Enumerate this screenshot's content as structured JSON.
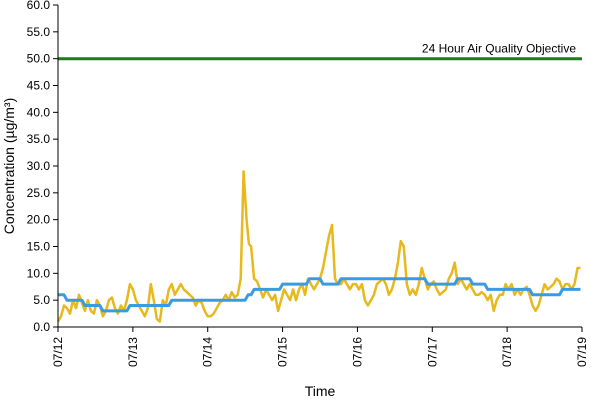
{
  "chart_data": {
    "type": "line",
    "title": "",
    "xlabel": "Time",
    "ylabel": "Concentration (µg/m³)",
    "ylim": [
      0,
      60
    ],
    "y_ticks": [
      "0.0",
      "5.0",
      "10.0",
      "15.0",
      "20.0",
      "25.0",
      "30.0",
      "35.0",
      "40.0",
      "45.0",
      "50.0",
      "55.0",
      "60.0"
    ],
    "x_ticks": [
      "07/12",
      "07/13",
      "07/14",
      "07/15",
      "07/16",
      "07/17",
      "07/18",
      "07/19"
    ],
    "xlim_days": [
      0,
      7
    ],
    "grid": false,
    "legend": "none",
    "annotation": {
      "text": "24 Hour Air Quality Objective",
      "y": 50
    },
    "series": [
      {
        "color": "#e8b81c",
        "points": [
          [
            0.0,
            1.0
          ],
          [
            0.04,
            2.0
          ],
          [
            0.08,
            4.0
          ],
          [
            0.12,
            3.5
          ],
          [
            0.16,
            2.5
          ],
          [
            0.2,
            5.0
          ],
          [
            0.24,
            3.5
          ],
          [
            0.28,
            6.0
          ],
          [
            0.32,
            4.5
          ],
          [
            0.36,
            3.0
          ],
          [
            0.4,
            5.0
          ],
          [
            0.44,
            3.0
          ],
          [
            0.48,
            2.5
          ],
          [
            0.52,
            5.0
          ],
          [
            0.56,
            4.0
          ],
          [
            0.6,
            2.0
          ],
          [
            0.64,
            3.0
          ],
          [
            0.68,
            5.0
          ],
          [
            0.72,
            5.5
          ],
          [
            0.76,
            3.5
          ],
          [
            0.8,
            2.5
          ],
          [
            0.84,
            4.0
          ],
          [
            0.88,
            3.0
          ],
          [
            0.92,
            5.0
          ],
          [
            0.96,
            8.0
          ],
          [
            1.0,
            7.0
          ],
          [
            1.04,
            5.0
          ],
          [
            1.08,
            4.0
          ],
          [
            1.12,
            3.0
          ],
          [
            1.16,
            2.0
          ],
          [
            1.2,
            3.5
          ],
          [
            1.24,
            8.0
          ],
          [
            1.28,
            5.0
          ],
          [
            1.32,
            1.5
          ],
          [
            1.36,
            1.0
          ],
          [
            1.4,
            5.0
          ],
          [
            1.44,
            4.0
          ],
          [
            1.48,
            7.0
          ],
          [
            1.52,
            8.0
          ],
          [
            1.56,
            6.0
          ],
          [
            1.6,
            7.0
          ],
          [
            1.64,
            8.0
          ],
          [
            1.68,
            7.0
          ],
          [
            1.72,
            6.5
          ],
          [
            1.76,
            6.0
          ],
          [
            1.8,
            5.5
          ],
          [
            1.84,
            4.0
          ],
          [
            1.88,
            5.0
          ],
          [
            1.92,
            4.5
          ],
          [
            1.96,
            3.0
          ],
          [
            2.0,
            2.0
          ],
          [
            2.04,
            2.0
          ],
          [
            2.08,
            2.5
          ],
          [
            2.12,
            3.5
          ],
          [
            2.16,
            4.5
          ],
          [
            2.2,
            5.0
          ],
          [
            2.24,
            6.0
          ],
          [
            2.28,
            5.0
          ],
          [
            2.32,
            6.5
          ],
          [
            2.36,
            5.5
          ],
          [
            2.4,
            6.0
          ],
          [
            2.44,
            9.0
          ],
          [
            2.48,
            29.0
          ],
          [
            2.52,
            20.0
          ],
          [
            2.55,
            15.5
          ],
          [
            2.58,
            15.0
          ],
          [
            2.62,
            9.0
          ],
          [
            2.66,
            8.5
          ],
          [
            2.7,
            7.0
          ],
          [
            2.74,
            5.5
          ],
          [
            2.78,
            7.0
          ],
          [
            2.82,
            6.0
          ],
          [
            2.86,
            5.0
          ],
          [
            2.9,
            6.0
          ],
          [
            2.94,
            3.0
          ],
          [
            2.98,
            5.0
          ],
          [
            3.02,
            7.0
          ],
          [
            3.06,
            6.0
          ],
          [
            3.1,
            5.0
          ],
          [
            3.14,
            7.0
          ],
          [
            3.18,
            5.0
          ],
          [
            3.22,
            7.0
          ],
          [
            3.26,
            8.0
          ],
          [
            3.3,
            6.0
          ],
          [
            3.34,
            9.0
          ],
          [
            3.38,
            8.0
          ],
          [
            3.42,
            7.0
          ],
          [
            3.46,
            8.0
          ],
          [
            3.5,
            9.0
          ],
          [
            3.54,
            11.0
          ],
          [
            3.58,
            14.0
          ],
          [
            3.62,
            17.0
          ],
          [
            3.66,
            19.0
          ],
          [
            3.7,
            9.0
          ],
          [
            3.74,
            8.0
          ],
          [
            3.78,
            8.0
          ],
          [
            3.82,
            9.0
          ],
          [
            3.86,
            8.0
          ],
          [
            3.9,
            7.0
          ],
          [
            3.94,
            8.0
          ],
          [
            3.98,
            8.0
          ],
          [
            4.02,
            7.0
          ],
          [
            4.06,
            8.0
          ],
          [
            4.1,
            5.0
          ],
          [
            4.14,
            4.0
          ],
          [
            4.18,
            5.0
          ],
          [
            4.22,
            6.0
          ],
          [
            4.26,
            8.0
          ],
          [
            4.3,
            8.5
          ],
          [
            4.34,
            9.0
          ],
          [
            4.38,
            8.0
          ],
          [
            4.42,
            6.0
          ],
          [
            4.46,
            7.0
          ],
          [
            4.5,
            9.0
          ],
          [
            4.54,
            12.0
          ],
          [
            4.58,
            16.0
          ],
          [
            4.62,
            15.0
          ],
          [
            4.66,
            8.0
          ],
          [
            4.7,
            6.0
          ],
          [
            4.74,
            7.0
          ],
          [
            4.78,
            6.0
          ],
          [
            4.82,
            8.0
          ],
          [
            4.86,
            11.0
          ],
          [
            4.9,
            9.0
          ],
          [
            4.94,
            7.0
          ],
          [
            4.98,
            8.0
          ],
          [
            5.02,
            8.5
          ],
          [
            5.06,
            7.0
          ],
          [
            5.1,
            6.0
          ],
          [
            5.14,
            6.5
          ],
          [
            5.18,
            7.0
          ],
          [
            5.22,
            9.0
          ],
          [
            5.26,
            10.0
          ],
          [
            5.3,
            12.0
          ],
          [
            5.34,
            8.0
          ],
          [
            5.38,
            9.0
          ],
          [
            5.42,
            8.0
          ],
          [
            5.46,
            7.0
          ],
          [
            5.5,
            8.0
          ],
          [
            5.54,
            7.0
          ],
          [
            5.58,
            6.0
          ],
          [
            5.62,
            6.0
          ],
          [
            5.66,
            6.5
          ],
          [
            5.7,
            6.0
          ],
          [
            5.74,
            5.0
          ],
          [
            5.78,
            6.0
          ],
          [
            5.82,
            3.0
          ],
          [
            5.86,
            5.0
          ],
          [
            5.9,
            6.0
          ],
          [
            5.94,
            6.0
          ],
          [
            5.98,
            8.0
          ],
          [
            6.02,
            7.0
          ],
          [
            6.06,
            8.0
          ],
          [
            6.1,
            6.0
          ],
          [
            6.14,
            7.0
          ],
          [
            6.18,
            6.0
          ],
          [
            6.22,
            7.0
          ],
          [
            6.26,
            7.5
          ],
          [
            6.3,
            6.0
          ],
          [
            6.34,
            4.0
          ],
          [
            6.38,
            3.0
          ],
          [
            6.42,
            4.0
          ],
          [
            6.46,
            6.0
          ],
          [
            6.5,
            8.0
          ],
          [
            6.54,
            7.0
          ],
          [
            6.58,
            7.5
          ],
          [
            6.62,
            8.0
          ],
          [
            6.66,
            9.0
          ],
          [
            6.7,
            8.5
          ],
          [
            6.74,
            7.0
          ],
          [
            6.78,
            8.0
          ],
          [
            6.82,
            8.0
          ],
          [
            6.86,
            7.0
          ],
          [
            6.9,
            8.0
          ],
          [
            6.94,
            11.0
          ],
          [
            6.98,
            11.0
          ]
        ]
      },
      {
        "color": "#3b9be0",
        "points": [
          [
            0.0,
            6.0
          ],
          [
            0.08,
            6.0
          ],
          [
            0.12,
            5.0
          ],
          [
            0.32,
            5.0
          ],
          [
            0.36,
            4.0
          ],
          [
            0.56,
            4.0
          ],
          [
            0.6,
            3.0
          ],
          [
            0.92,
            3.0
          ],
          [
            0.96,
            4.0
          ],
          [
            1.48,
            4.0
          ],
          [
            1.52,
            5.0
          ],
          [
            2.5,
            5.0
          ],
          [
            2.54,
            6.0
          ],
          [
            2.58,
            6.0
          ],
          [
            2.62,
            7.0
          ],
          [
            2.96,
            7.0
          ],
          [
            3.0,
            8.0
          ],
          [
            3.32,
            8.0
          ],
          [
            3.36,
            9.0
          ],
          [
            3.5,
            9.0
          ],
          [
            3.54,
            8.0
          ],
          [
            3.74,
            8.0
          ],
          [
            3.78,
            9.0
          ],
          [
            4.9,
            9.0
          ],
          [
            4.94,
            8.0
          ],
          [
            5.3,
            8.0
          ],
          [
            5.34,
            9.0
          ],
          [
            5.5,
            9.0
          ],
          [
            5.54,
            8.0
          ],
          [
            5.7,
            8.0
          ],
          [
            5.74,
            7.0
          ],
          [
            6.3,
            7.0
          ],
          [
            6.34,
            6.0
          ],
          [
            6.7,
            6.0
          ],
          [
            6.74,
            7.0
          ],
          [
            6.98,
            7.0
          ]
        ]
      },
      {
        "color": "#1e7b1e",
        "points": [
          [
            0.0,
            50.0
          ],
          [
            7.0,
            50.0
          ]
        ]
      }
    ]
  }
}
